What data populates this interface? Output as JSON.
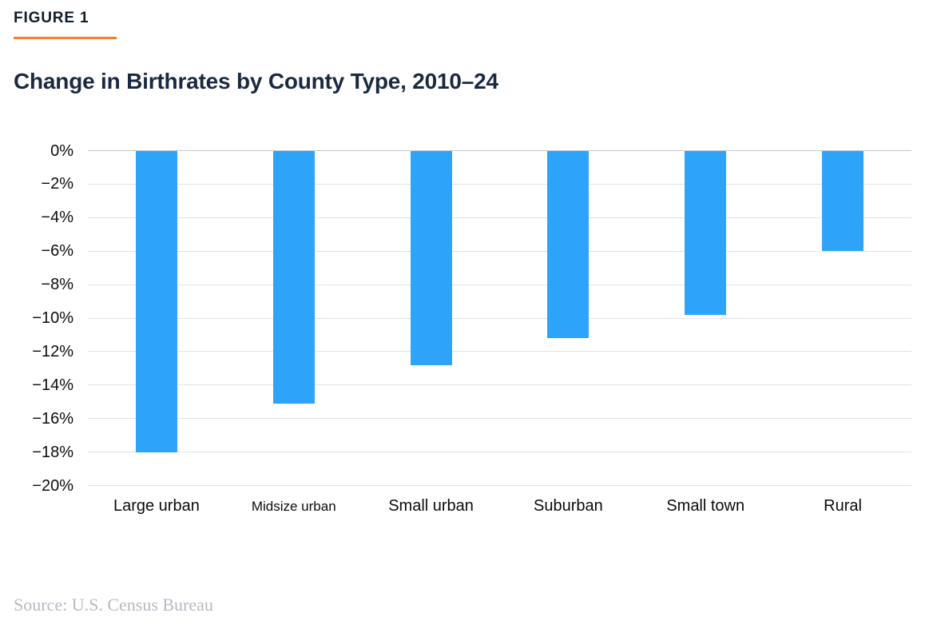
{
  "figure_label": "FIGURE 1",
  "source": "Source: U.S. Census Bureau",
  "colors": {
    "accent_orange": "#f5821f",
    "bar_blue": "#2da4fa",
    "title_navy": "#1b2940",
    "gridline": "#e2e2e2",
    "source_gray": "#b6bac3"
  },
  "chart_data": {
    "type": "bar",
    "title": "Change in Birthrates by County Type, 2010–24",
    "categories": [
      "Large urban",
      "Midsize urban",
      "Small urban",
      "Suburban",
      "Small town",
      "Rural"
    ],
    "values": [
      -18.0,
      -15.1,
      -12.8,
      -11.2,
      -9.8,
      -6.0
    ],
    "unit": "%",
    "xlabel": "",
    "ylabel": "",
    "ylim": [
      0,
      -20
    ],
    "ytick_step": 2,
    "yticks": [
      "0%",
      "−2%",
      "−4%",
      "−6%",
      "−8%",
      "−10%",
      "−12%",
      "−14%",
      "−16%",
      "−18%",
      "−20%"
    ],
    "grid": true,
    "legend": "none",
    "bar_orientation": "vertical-negative"
  }
}
